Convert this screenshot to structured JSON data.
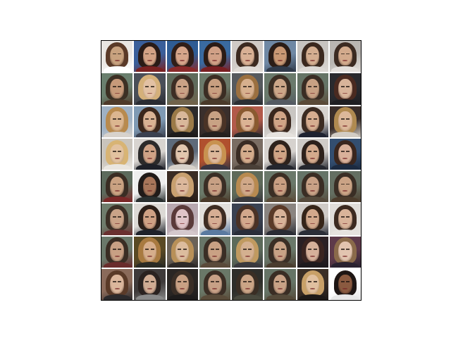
{
  "image": {
    "description_hidden": false,
    "grid_rows": 8,
    "grid_cols": 8,
    "tile_palettes": [
      [
        "#e9e6e2",
        "#c8a27f",
        "#5a3a28",
        "#ffffff"
      ],
      [
        "#3a5f9a",
        "#d3a284",
        "#2a1b16",
        "#7a2222"
      ],
      [
        "#2f5c94",
        "#d6a58a",
        "#301e18",
        "#8a2a2a"
      ],
      [
        "#3a6aa0",
        "#d0a086",
        "#2b1b16",
        "#7a1f22"
      ],
      [
        "#cfcac6",
        "#d8b094",
        "#3c2a20",
        "#e0dbd6"
      ],
      [
        "#6f88a4",
        "#c99874",
        "#2b1d17",
        "#303a4a"
      ],
      [
        "#c7c4c0",
        "#d4ae90",
        "#3a281e",
        "#dcd8d4"
      ],
      [
        "#b9b6b2",
        "#d2aa8c",
        "#3b2a21",
        "#e4e0dc"
      ],
      [
        "#6a7f6e",
        "#c79a7a",
        "#3c3024",
        "#4e3a2a"
      ],
      [
        "#4a4f58",
        "#e2c1a4",
        "#d4b07a",
        "#2a2c33"
      ],
      [
        "#5f6b5c",
        "#caa286",
        "#3d2e25",
        "#70624a"
      ],
      [
        "#6c7a6a",
        "#c89f80",
        "#3b2d23",
        "#4a3a2a"
      ],
      [
        "#565a5e",
        "#d7b08e",
        "#9b7040",
        "#2d2f34"
      ],
      [
        "#6a7a6c",
        "#cca688",
        "#3b2e24",
        "#545a62"
      ],
      [
        "#657466",
        "#c8a184",
        "#3a2d24",
        "#5a4a38"
      ],
      [
        "#2a2a2e",
        "#d8b49a",
        "#4a2a20",
        "#1e1e22"
      ],
      [
        "#9fb1c4",
        "#dcb690",
        "#b88a4e",
        "#d7d2cc"
      ],
      [
        "#7f9ab4",
        "#d9b294",
        "#3b271d",
        "#3b4150"
      ],
      [
        "#2c2a2a",
        "#d9b89a",
        "#9b7a48",
        "#1e1c1c"
      ],
      [
        "#3a2f2c",
        "#c8a284",
        "#4a3326",
        "#24201e"
      ],
      [
        "#b25a4a",
        "#dbb394",
        "#8a5a30",
        "#2a2a2a"
      ],
      [
        "#c9c6c2",
        "#cfa486",
        "#3a271d",
        "#e6e2de"
      ],
      [
        "#d7d3cf",
        "#d6ad90",
        "#3b2b22",
        "#1e2230"
      ],
      [
        "#3a2e2a",
        "#dcb89a",
        "#b08a50",
        "#d2ccc4"
      ],
      [
        "#c9c4bc",
        "#e2c2a0",
        "#d8b474",
        "#eae6e0"
      ],
      [
        "#d8d4d0",
        "#cfa286",
        "#2c2a2a",
        "#1e2028"
      ],
      [
        "#5e6a7a",
        "#e2c6ae",
        "#3c2c24",
        "#d8d2ca"
      ],
      [
        "#b0502e",
        "#dcb89a",
        "#c89250",
        "#3a3640"
      ],
      [
        "#7a6d63",
        "#d4ac8c",
        "#3a2c24",
        "#4a4038"
      ],
      [
        "#d6d2ce",
        "#d0a486",
        "#2e221c",
        "#24262e"
      ],
      [
        "#cfcbc7",
        "#d4aa8c",
        "#2d211b",
        "#26282f"
      ],
      [
        "#334e70",
        "#d9b09a",
        "#3a261e",
        "#1c2a40"
      ],
      [
        "#5c6a5c",
        "#caa282",
        "#3a2d24",
        "#7a2828"
      ],
      [
        "#eeeeee",
        "#a8765a",
        "#201a18",
        "#2a3030"
      ],
      [
        "#3a2c24",
        "#dcb89c",
        "#c8a070",
        "#2a1e18"
      ],
      [
        "#6b7a6a",
        "#c7a084",
        "#3a2e25",
        "#4a3a2a"
      ],
      [
        "#5f6a5a",
        "#d0a888",
        "#b88a50",
        "#3a3a3e"
      ],
      [
        "#6a786a",
        "#c99f82",
        "#3b2e24",
        "#5a4a38"
      ],
      [
        "#667468",
        "#c8a186",
        "#3a2d24",
        "#554a3c"
      ],
      [
        "#646f62",
        "#caa385",
        "#3a2e25",
        "#4c3c2c"
      ],
      [
        "#6f7c6c",
        "#caa388",
        "#3c2f26",
        "#6a3030"
      ],
      [
        "#dcd9d5",
        "#cfa184",
        "#2b1f19",
        "#1e222a"
      ],
      [
        "#b8a8b0",
        "#e0c4c8",
        "#5a3a3a",
        "#d4c8cc"
      ],
      [
        "#e2dfdb",
        "#d6ae94",
        "#3e2c22",
        "#5a7aa0"
      ],
      [
        "#3a4252",
        "#d2a88c",
        "#4a3226",
        "#2a2e3a"
      ],
      [
        "#8a8480",
        "#d8b298",
        "#5a3a28",
        "#2a2c34"
      ],
      [
        "#cfcbc7",
        "#d2a98c",
        "#352519",
        "#2a2e38"
      ],
      [
        "#e0ddd9",
        "#d9b49a",
        "#3c2a20",
        "#e6e2de"
      ],
      [
        "#6a786a",
        "#c8a084",
        "#3a2d24",
        "#6a2c2c"
      ],
      [
        "#5a4a24",
        "#d6ae8c",
        "#a87a40",
        "#2a2a24"
      ],
      [
        "#6a6258",
        "#dcbc9e",
        "#b89058",
        "#2e2a28"
      ],
      [
        "#687668",
        "#c9a184",
        "#3a2e25",
        "#5a4a3a"
      ],
      [
        "#5c6a5a",
        "#d4b090",
        "#c09a60",
        "#3a3a3e"
      ],
      [
        "#6a786a",
        "#c8a286",
        "#3a2e25",
        "#4a3c2e"
      ],
      [
        "#2a2024",
        "#d6b09a",
        "#3a2420",
        "#1e1a1e"
      ],
      [
        "#5e3a4a",
        "#e2c4b0",
        "#8a6a4a",
        "#2a2230"
      ],
      [
        "#8a6a5a",
        "#dbb69c",
        "#5a3a28",
        "#2c2a2c"
      ],
      [
        "#3e3a3a",
        "#d0ac94",
        "#2a2220",
        "#8a8a8a"
      ],
      [
        "#2a2624",
        "#c8a084",
        "#3a2e26",
        "#1e1c1c"
      ],
      [
        "#6a7868",
        "#c7a086",
        "#3b2e25",
        "#5a4c3a"
      ],
      [
        "#2e2e2a",
        "#caa486",
        "#3a2e24",
        "#4a4a3e"
      ],
      [
        "#667466",
        "#c9a286",
        "#3a2d24",
        "#554a3a"
      ],
      [
        "#3a2e26",
        "#e0c0a0",
        "#c8a068",
        "#1e1a18"
      ],
      [
        "#ffffff",
        "#8a5a40",
        "#1e1614",
        "#e8e8e8"
      ]
    ]
  }
}
